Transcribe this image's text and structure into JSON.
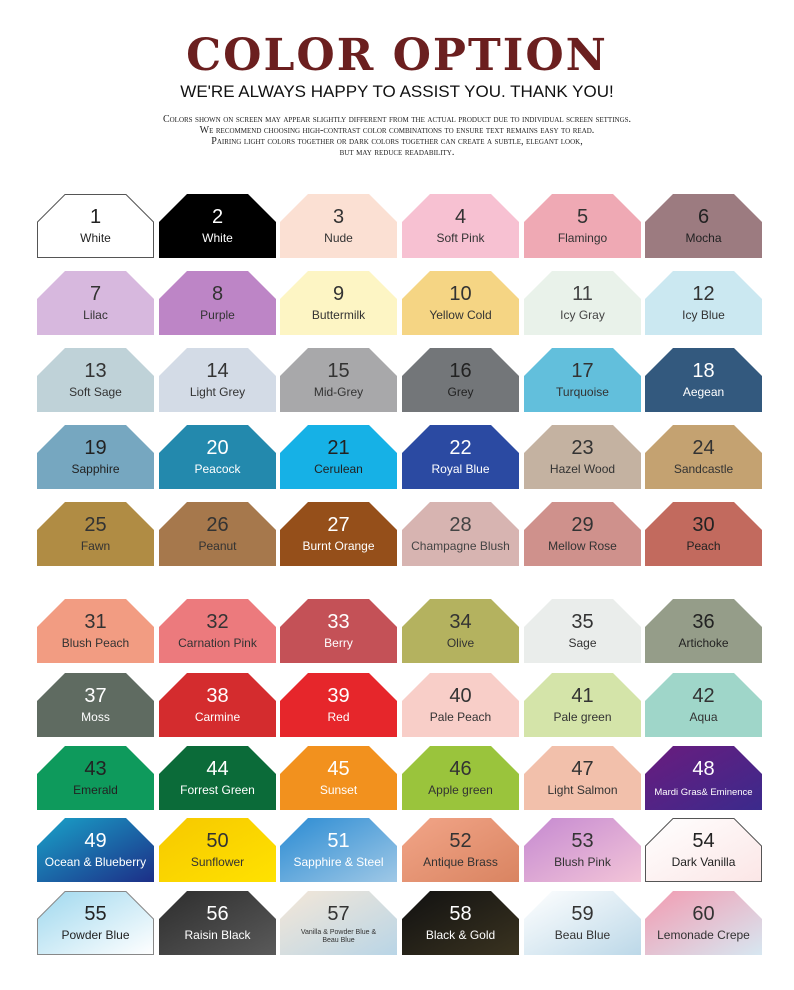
{
  "header": {
    "title": "COLOR OPTION",
    "subtitle": "WE'RE ALWAYS HAPPY TO ASSIST YOU. THANK YOU!",
    "notes": [
      "Colors shown on screen may appear slightly different from the actual product due to individual screen settings.",
      "We recommend choosing high-contrast color combinations to ensure text remains easy to read.",
      "Pairing light colors together or dark colors together can create a subtle, elegant look,",
      "but may reduce readability."
    ]
  },
  "swatches": [
    {
      "num": "1",
      "name": "White",
      "fill": "#ffffff",
      "text": "#222222",
      "stroke": "#555555"
    },
    {
      "num": "2",
      "name": "White",
      "fill": "#000000",
      "text": "#ffffff"
    },
    {
      "num": "3",
      "name": "Nude",
      "fill": "#fbe0d3",
      "text": "#333333"
    },
    {
      "num": "4",
      "name": "Soft Pink",
      "fill": "#f7c1d2",
      "text": "#333333"
    },
    {
      "num": "5",
      "name": "Flamingo",
      "fill": "#efa9b4",
      "text": "#333333"
    },
    {
      "num": "6",
      "name": "Mocha",
      "fill": "#9c7b80",
      "text": "#222222"
    },
    {
      "num": "7",
      "name": "Lilac",
      "fill": "#d7b8de",
      "text": "#333333"
    },
    {
      "num": "8",
      "name": "Purple",
      "fill": "#bd85c6",
      "text": "#333333"
    },
    {
      "num": "9",
      "name": "Buttermilk",
      "fill": "#fdf5c4",
      "text": "#333333"
    },
    {
      "num": "10",
      "name": "Yellow Cold",
      "fill": "#f5d584",
      "text": "#333333"
    },
    {
      "num": "11",
      "name": "Icy Gray",
      "fill": "#e9f2ea",
      "text": "#444444"
    },
    {
      "num": "12",
      "name": "Icy Blue",
      "fill": "#cbe8f1",
      "text": "#333333"
    },
    {
      "num": "13",
      "name": "Soft Sage",
      "fill": "#bfd2d8",
      "text": "#333333"
    },
    {
      "num": "14",
      "name": "Light Grey",
      "fill": "#d3dbe6",
      "text": "#333333"
    },
    {
      "num": "15",
      "name": "Mid-Grey",
      "fill": "#a8a8aa",
      "text": "#333333"
    },
    {
      "num": "16",
      "name": "Grey",
      "fill": "#737679",
      "text": "#222222"
    },
    {
      "num": "17",
      "name": "Turquoise",
      "fill": "#62bfdc",
      "text": "#333333"
    },
    {
      "num": "18",
      "name": "Aegean",
      "fill": "#33597e",
      "text": "#ffffff"
    },
    {
      "num": "19",
      "name": "Sapphire",
      "fill": "#76a7c0",
      "text": "#222222"
    },
    {
      "num": "20",
      "name": "Peacock",
      "fill": "#2389ad",
      "text": "#ffffff"
    },
    {
      "num": "21",
      "name": "Cerulean",
      "fill": "#16b1e6",
      "text": "#222222"
    },
    {
      "num": "22",
      "name": "Royal Blue",
      "fill": "#2b4aa2",
      "text": "#ffffff"
    },
    {
      "num": "23",
      "name": "Hazel Wood",
      "fill": "#c4b2a1",
      "text": "#333333"
    },
    {
      "num": "24",
      "name": "Sandcastle",
      "fill": "#c4a271",
      "text": "#333333"
    },
    {
      "num": "25",
      "name": "Fawn",
      "fill": "#b08c44",
      "text": "#333333"
    },
    {
      "num": "26",
      "name": "Peanut",
      "fill": "#a6784c",
      "text": "#333333"
    },
    {
      "num": "27",
      "name": "Burnt Orange",
      "fill": "#954f1a",
      "text": "#ffffff"
    },
    {
      "num": "28",
      "name": "Champagne Blush",
      "fill": "#d7b4b1",
      "text": "#444444"
    },
    {
      "num": "29",
      "name": "Mellow Rose",
      "fill": "#cf918c",
      "text": "#333333"
    },
    {
      "num": "30",
      "name": "Peach",
      "fill": "#c26a5e",
      "text": "#222222"
    },
    {
      "num": "31",
      "name": "Blush Peach",
      "fill": "#f29c82",
      "text": "#333333"
    },
    {
      "num": "32",
      "name": "Carnation Pink",
      "fill": "#ec7a7d",
      "text": "#333333"
    },
    {
      "num": "33",
      "name": "Berry",
      "fill": "#c45157",
      "text": "#ffffff"
    },
    {
      "num": "34",
      "name": "Olive",
      "fill": "#b4b25f",
      "text": "#333333"
    },
    {
      "num": "35",
      "name": "Sage",
      "fill": "#eaedeb",
      "text": "#333333"
    },
    {
      "num": "36",
      "name": "Artichoke",
      "fill": "#959d89",
      "text": "#222222"
    },
    {
      "num": "37",
      "name": "Moss",
      "fill": "#5f6b61",
      "text": "#ffffff"
    },
    {
      "num": "38",
      "name": "Carmine",
      "fill": "#d42c2e",
      "text": "#ffffff"
    },
    {
      "num": "39",
      "name": "Red",
      "fill": "#e6262b",
      "text": "#ffffff"
    },
    {
      "num": "40",
      "name": "Pale Peach",
      "fill": "#f8cec8",
      "text": "#333333"
    },
    {
      "num": "41",
      "name": "Pale green",
      "fill": "#d4e4a9",
      "text": "#333333"
    },
    {
      "num": "42",
      "name": "Aqua",
      "fill": "#9fd6c9",
      "text": "#333333"
    },
    {
      "num": "43",
      "name": "Emerald",
      "fill": "#0e9a5c",
      "text": "#222222"
    },
    {
      "num": "44",
      "name": "Forrest Green",
      "fill": "#0b6b39",
      "text": "#ffffff"
    },
    {
      "num": "45",
      "name": "Sunset",
      "fill": "#f2911e",
      "text": "#ffffff"
    },
    {
      "num": "46",
      "name": "Apple green",
      "fill": "#9ac43c",
      "text": "#333333"
    },
    {
      "num": "47",
      "name": "Light Salmon",
      "fill": "#f2c0ab",
      "text": "#333333"
    },
    {
      "num": "48",
      "name": "Mardi Gras& Eminence",
      "grad": [
        "#6a1c7e",
        "#3b2a8c"
      ],
      "text": "#ffffff",
      "small": "sm"
    },
    {
      "num": "49",
      "name": "Ocean & Blueberry",
      "grad": [
        "#1aa3c9",
        "#1c2e87"
      ],
      "text": "#ffffff"
    },
    {
      "num": "50",
      "name": "Sunflower",
      "grad": [
        "#f6c800",
        "#ffe200"
      ],
      "text": "#333333"
    },
    {
      "num": "51",
      "name": "Sapphire & Steel",
      "grad": [
        "#2a8bd3",
        "#9fc8e6"
      ],
      "text": "#ffffff"
    },
    {
      "num": "52",
      "name": "Antique Brass",
      "grad": [
        "#f2a588",
        "#d98461"
      ],
      "text": "#333333"
    },
    {
      "num": "53",
      "name": "Blush Pink",
      "grad": [
        "#c589d1",
        "#f3c5d8"
      ],
      "text": "#333333"
    },
    {
      "num": "54",
      "name": "Dark Vanilla",
      "grad": [
        "#ffffff",
        "#fbe6e6"
      ],
      "text": "#222222",
      "stroke": "#555555"
    },
    {
      "num": "55",
      "name": "Powder Blue",
      "grad": [
        "#9fd8ee",
        "#ffffff"
      ],
      "text": "#222222",
      "stroke": "#888888"
    },
    {
      "num": "56",
      "name": "Raisin Black",
      "grad": [
        "#2d2d2d",
        "#5a5a5a"
      ],
      "text": "#ffffff"
    },
    {
      "num": "57",
      "name": "Vanilla & Powder Blue & Beau Blue",
      "grad": [
        "#f4e7d8",
        "#b9d5e6"
      ],
      "text": "#333333",
      "small": "xs"
    },
    {
      "num": "58",
      "name": "Black & Gold",
      "grad": [
        "#111111",
        "#3a3320"
      ],
      "text": "#ffffff"
    },
    {
      "num": "59",
      "name": "Beau Blue",
      "grad": [
        "#ffffff",
        "#bcd8e8"
      ],
      "text": "#333333"
    },
    {
      "num": "60",
      "name": "Lemonade Crepe",
      "grad": [
        "#f29bb1",
        "#d7e7f1"
      ],
      "text": "#333333"
    }
  ]
}
